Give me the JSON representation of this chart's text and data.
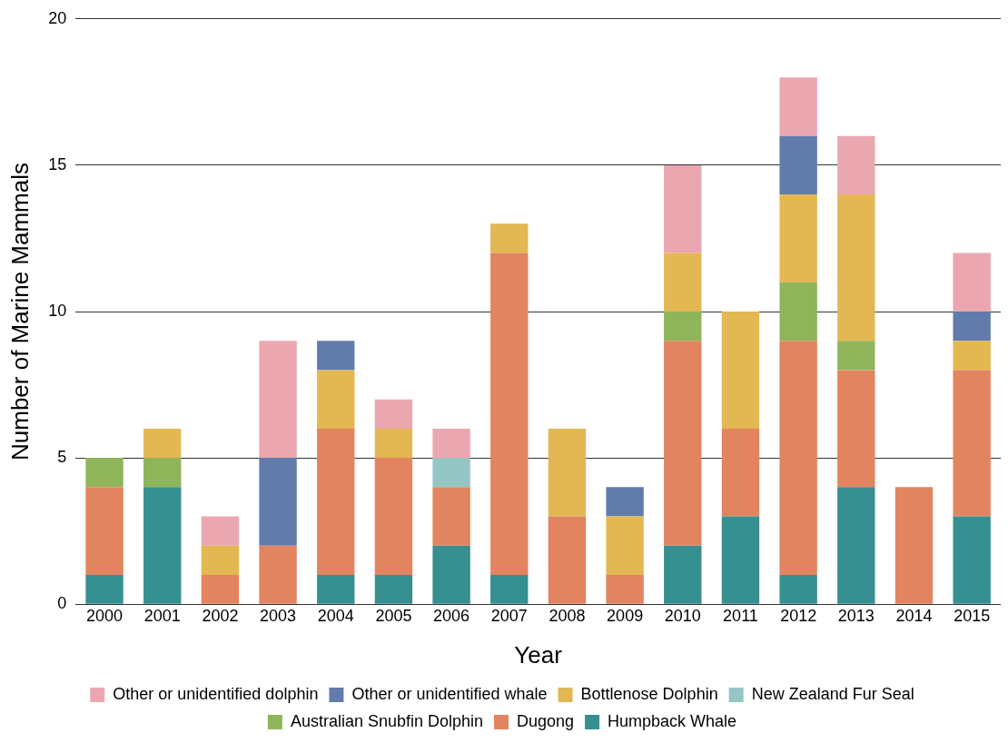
{
  "chart_data": {
    "type": "bar",
    "stacked": true,
    "xlabel": "Year",
    "ylabel": "Number of Marine Mammals",
    "categories": [
      "2000",
      "2001",
      "2002",
      "2003",
      "2004",
      "2005",
      "2006",
      "2007",
      "2008",
      "2009",
      "2010",
      "2011",
      "2012",
      "2013",
      "2014",
      "2015"
    ],
    "series": [
      {
        "name": "Humpback Whale",
        "color": "#368f91",
        "values": [
          1,
          4,
          0,
          0,
          1,
          1,
          2,
          1,
          0,
          0,
          2,
          3,
          1,
          4,
          0,
          3
        ]
      },
      {
        "name": "Dugong",
        "color": "#e2845f",
        "values": [
          3,
          0,
          1,
          2,
          5,
          4,
          2,
          11,
          3,
          1,
          7,
          3,
          8,
          4,
          4,
          5
        ]
      },
      {
        "name": "Australian Snubfin Dolphin",
        "color": "#8fb55a",
        "values": [
          1,
          1,
          0,
          0,
          0,
          0,
          0,
          0,
          0,
          0,
          1,
          0,
          2,
          1,
          0,
          0
        ]
      },
      {
        "name": "New Zealand Fur Seal",
        "color": "#93c6c4",
        "values": [
          0,
          0,
          0,
          0,
          0,
          0,
          1,
          0,
          0,
          0,
          0,
          0,
          0,
          0,
          0,
          0
        ]
      },
      {
        "name": "Bottlenose Dolphin",
        "color": "#e3b752",
        "values": [
          0,
          1,
          1,
          0,
          2,
          1,
          0,
          1,
          3,
          2,
          2,
          4,
          3,
          5,
          0,
          1
        ]
      },
      {
        "name": "Other or unidentified whale",
        "color": "#617cab",
        "values": [
          0,
          0,
          0,
          3,
          1,
          0,
          0,
          0,
          0,
          1,
          0,
          0,
          2,
          0,
          0,
          1
        ]
      },
      {
        "name": "Other or unidentified dolphin",
        "color": "#eba7b0",
        "values": [
          0,
          0,
          1,
          4,
          0,
          1,
          1,
          0,
          0,
          0,
          3,
          0,
          2,
          2,
          0,
          2
        ]
      }
    ],
    "ylim": [
      0,
      20
    ],
    "yticks": [
      0,
      5,
      10,
      15,
      20
    ],
    "grid": "y",
    "legend": "bottom"
  }
}
